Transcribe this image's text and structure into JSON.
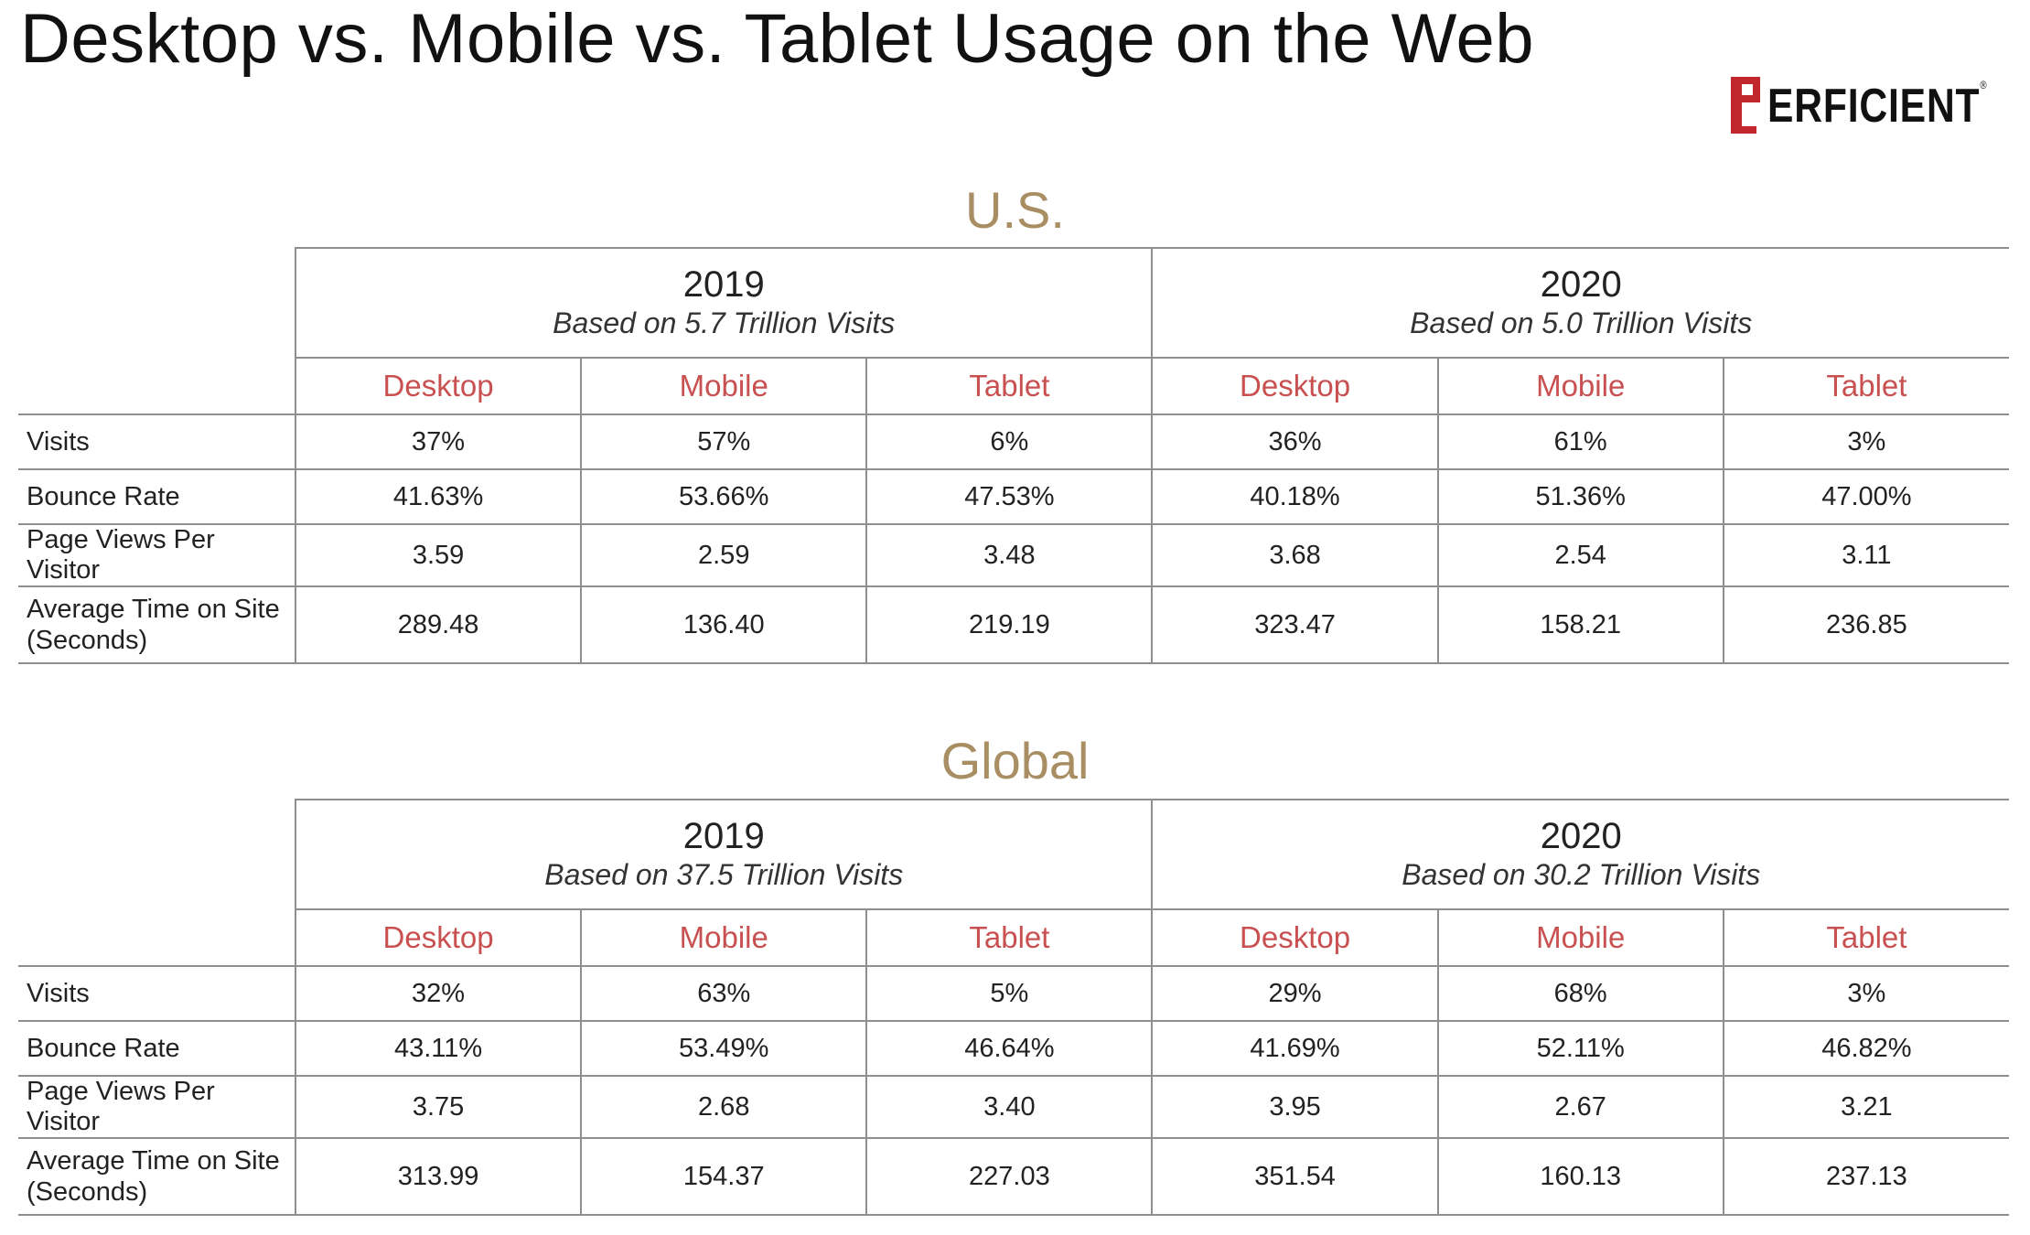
{
  "title": "Desktop vs. Mobile vs. Tablet Usage on the Web",
  "logo": {
    "text_first": "P",
    "text_rest": "ERFICIENT",
    "tm": "®",
    "accent": "#c1272d"
  },
  "colors": {
    "section_title": "#a88e62",
    "device_header": "#c95050",
    "rule": "#8e8e8e"
  },
  "chart_data": [
    {
      "type": "table",
      "title": "U.S.",
      "years": [
        {
          "year": "2019",
          "basis": "Based on 5.7 Trillion Visits"
        },
        {
          "year": "2020",
          "basis": "Based on 5.0 Trillion Visits"
        }
      ],
      "devices": [
        "Desktop",
        "Mobile",
        "Tablet",
        "Desktop",
        "Mobile",
        "Tablet"
      ],
      "rows": [
        {
          "metric": "Visits",
          "values": [
            "37%",
            "57%",
            "6%",
            "36%",
            "61%",
            "3%"
          ]
        },
        {
          "metric": "Bounce Rate",
          "values": [
            "41.63%",
            "53.66%",
            "47.53%",
            "40.18%",
            "51.36%",
            "47.00%"
          ]
        },
        {
          "metric": "Page Views Per Visitor",
          "values": [
            "3.59",
            "2.59",
            "3.48",
            "3.68",
            "2.54",
            "3.11"
          ]
        },
        {
          "metric_line1": "Average Time on Site",
          "metric_line2": "(Seconds)",
          "values": [
            "289.48",
            "136.40",
            "219.19",
            "323.47",
            "158.21",
            "236.85"
          ]
        }
      ]
    },
    {
      "type": "table",
      "title": "Global",
      "years": [
        {
          "year": "2019",
          "basis": "Based on 37.5 Trillion Visits"
        },
        {
          "year": "2020",
          "basis": "Based on 30.2 Trillion Visits"
        }
      ],
      "devices": [
        "Desktop",
        "Mobile",
        "Tablet",
        "Desktop",
        "Mobile",
        "Tablet"
      ],
      "rows": [
        {
          "metric": "Visits",
          "values": [
            "32%",
            "63%",
            "5%",
            "29%",
            "68%",
            "3%"
          ]
        },
        {
          "metric": "Bounce Rate",
          "values": [
            "43.11%",
            "53.49%",
            "46.64%",
            "41.69%",
            "52.11%",
            "46.82%"
          ]
        },
        {
          "metric": "Page Views Per Visitor",
          "values": [
            "3.75",
            "2.68",
            "3.40",
            "3.95",
            "2.67",
            "3.21"
          ]
        },
        {
          "metric_line1": "Average Time on Site",
          "metric_line2": "(Seconds)",
          "values": [
            "313.99",
            "154.37",
            "227.03",
            "351.54",
            "160.13",
            "237.13"
          ]
        }
      ]
    }
  ]
}
